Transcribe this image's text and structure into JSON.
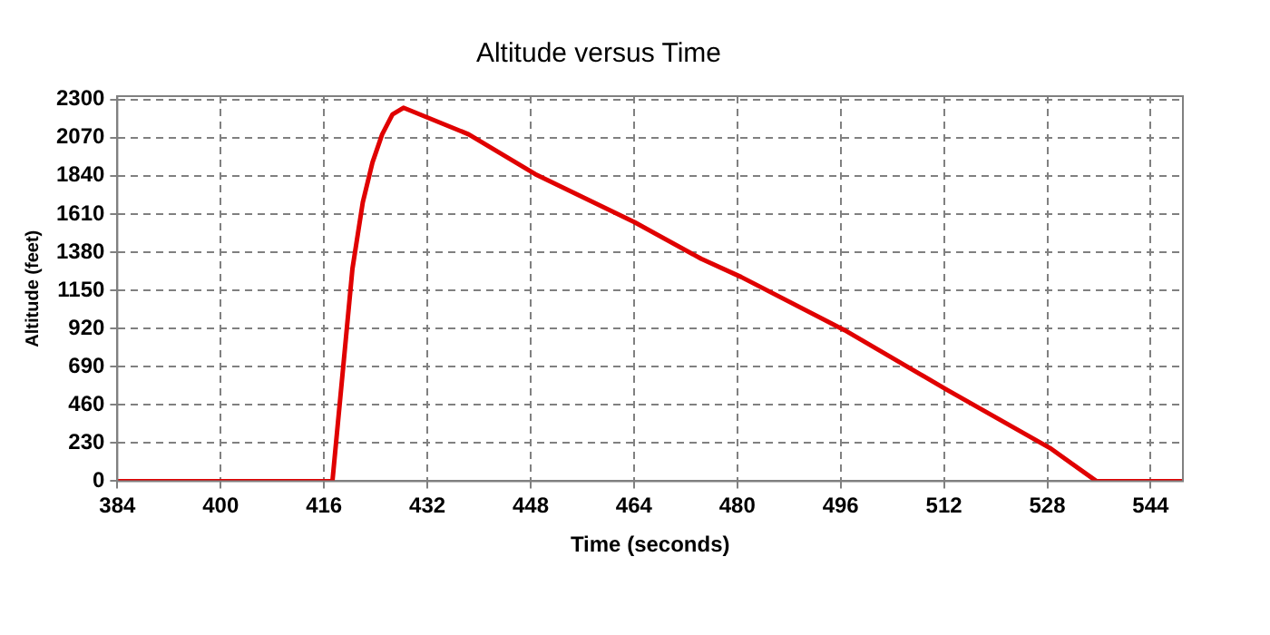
{
  "chart_data": {
    "type": "line",
    "title": "Altitude versus Time",
    "xlabel": "Time (seconds)",
    "ylabel": "Altitude (feet)",
    "x": [
      384,
      417.3,
      419.0,
      420.4,
      422.0,
      423.5,
      425.0,
      426.6,
      428.3,
      438.4,
      448.7,
      464.1,
      474.4,
      480.6,
      496.6,
      512.5,
      528.4,
      535.6,
      549
    ],
    "series": [
      {
        "color": "#e00000",
        "values": [
          0,
          0,
          700,
          1280,
          1680,
          1920,
          2090,
          2210,
          2250,
          2090,
          1850,
          1560,
          1340,
          1230,
          910,
          550,
          200,
          0,
          0
        ]
      }
    ],
    "xlim": [
      384,
      549
    ],
    "xticks": [
      384,
      400,
      416,
      432,
      448,
      464,
      480,
      496,
      512,
      528,
      544
    ],
    "ylim": [
      0,
      2320
    ],
    "yticks": [
      0,
      230,
      460,
      690,
      920,
      1150,
      1380,
      1610,
      1840,
      2070,
      2300
    ],
    "grid": true,
    "legend": false,
    "marker": "none",
    "line_style": "solid"
  }
}
